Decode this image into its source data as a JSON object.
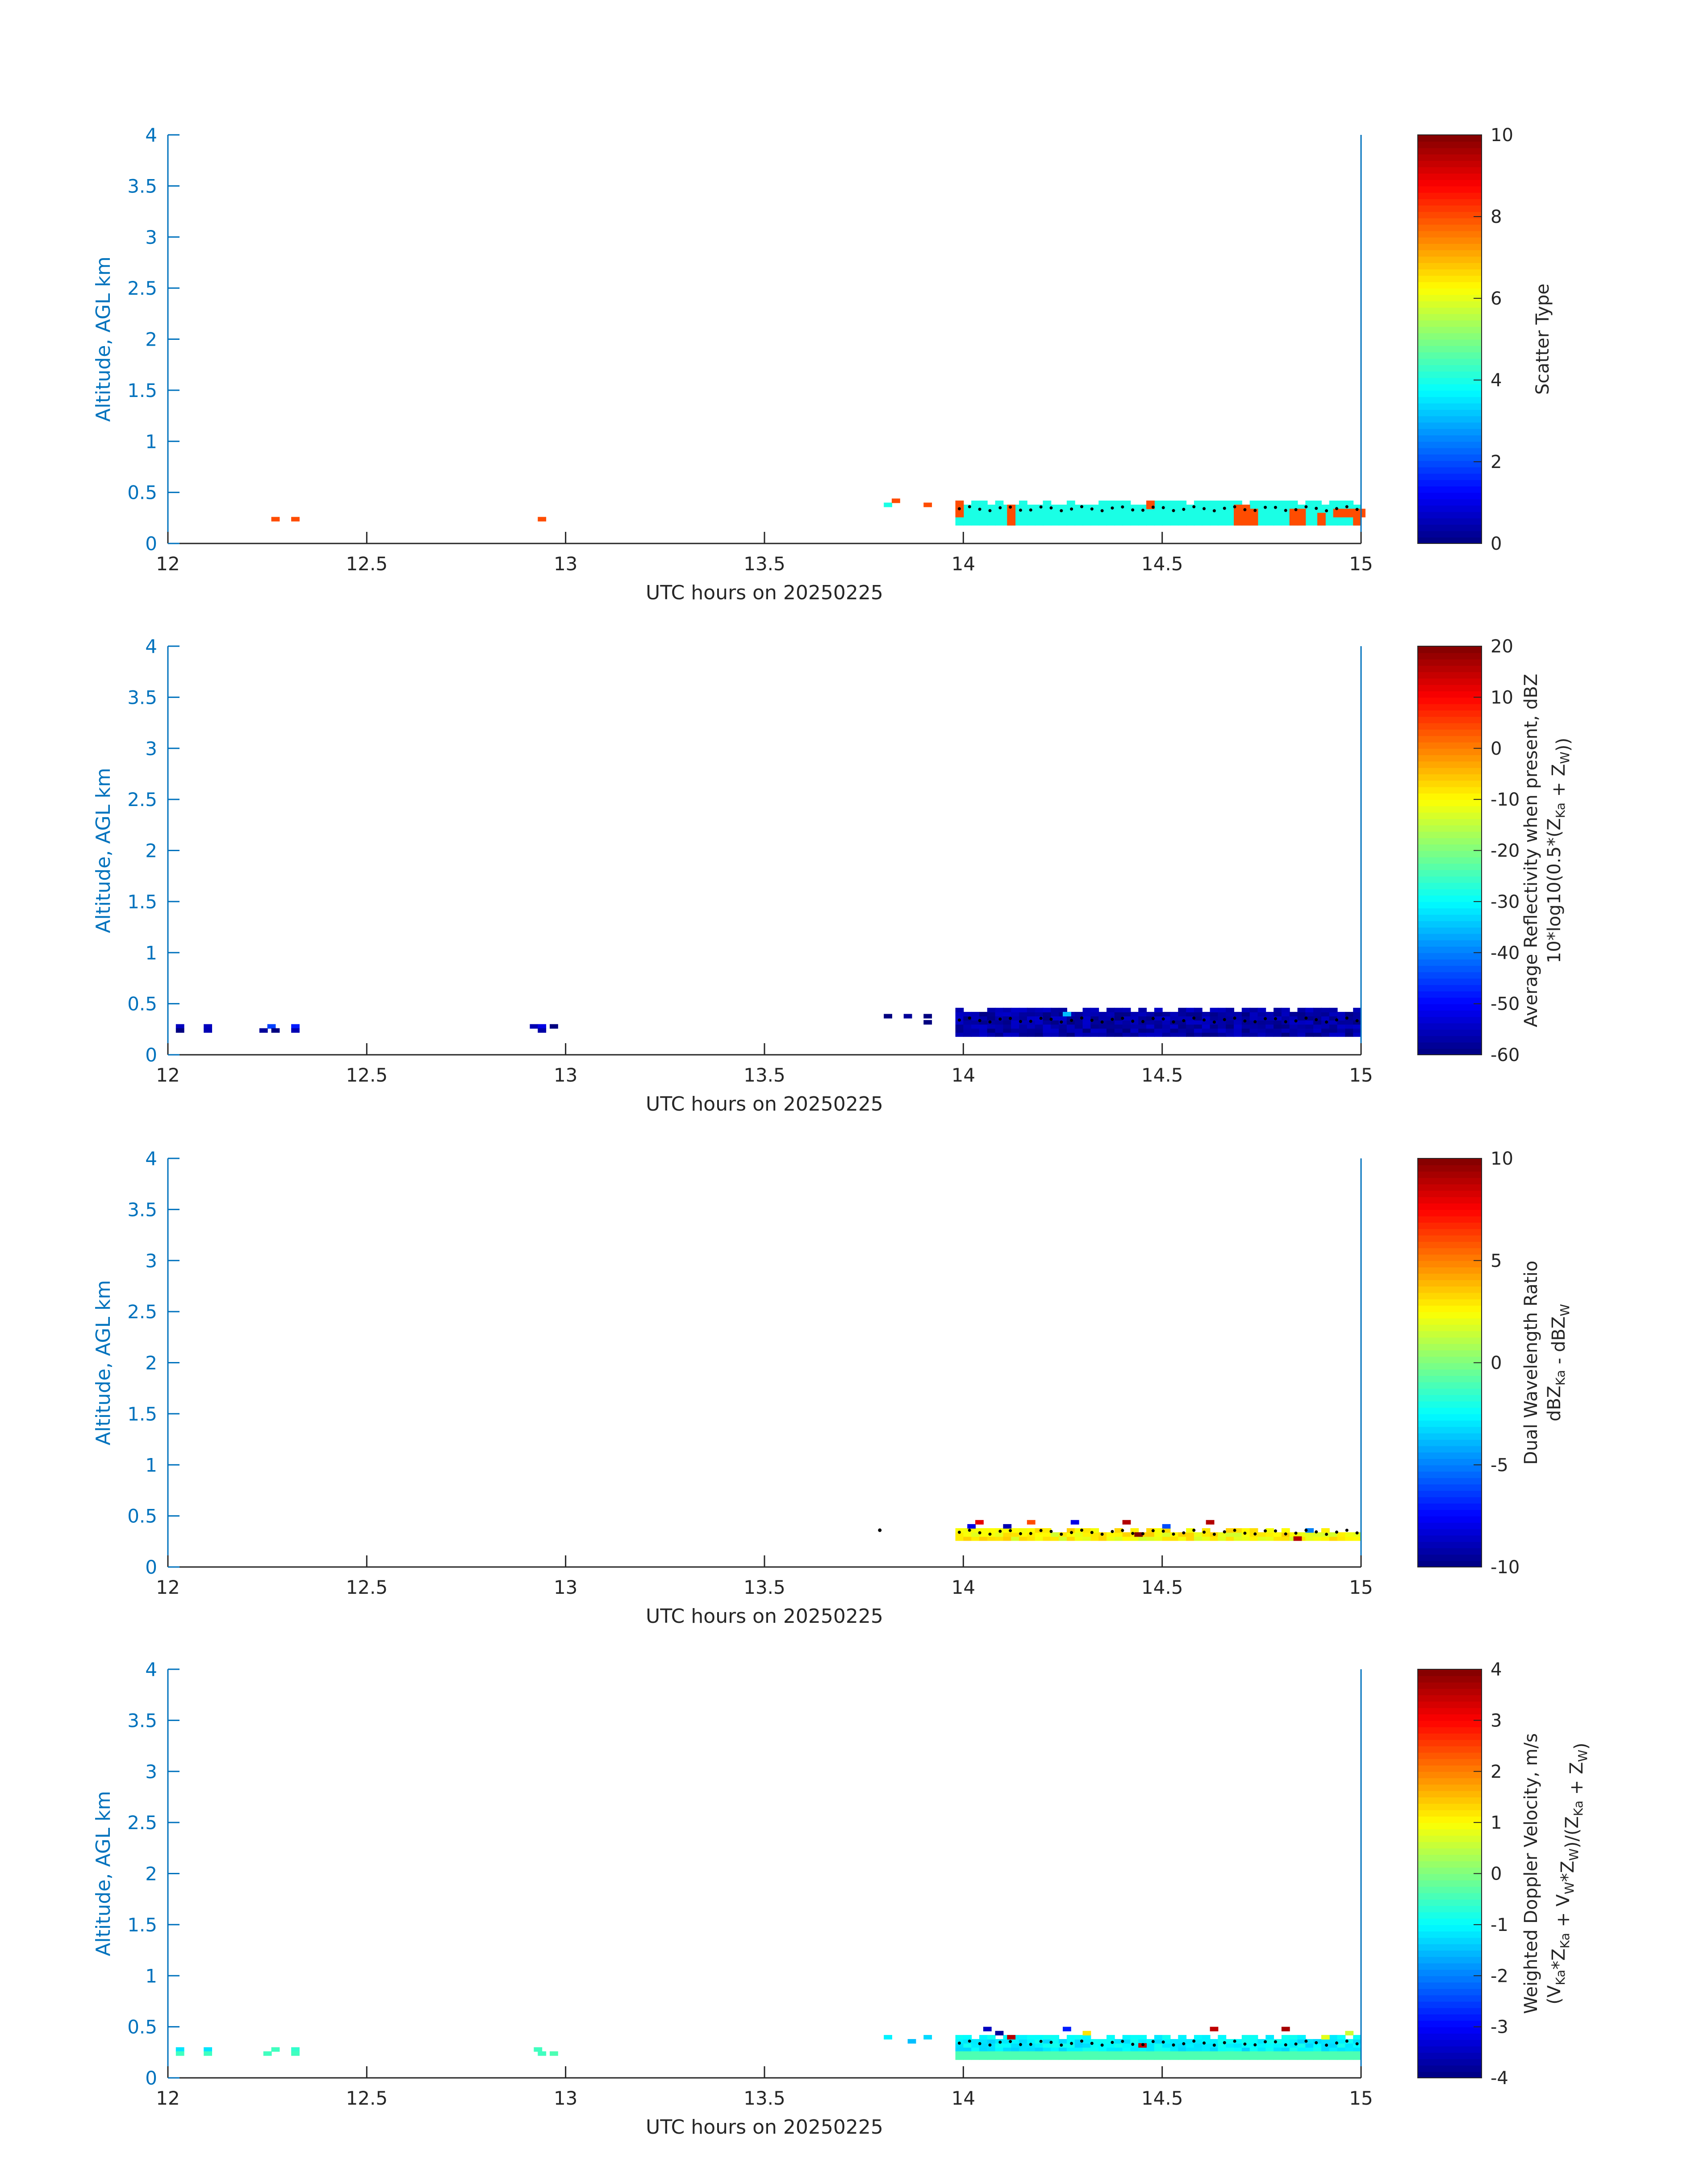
{
  "figure": {
    "background": "#ffffff",
    "axis_color": "#0072bd",
    "text_color": "#262626",
    "colormap": "jet"
  },
  "chart_data": [
    {
      "type": "heatmap",
      "title": "",
      "xlabel": "UTC hours on 20250225",
      "ylabel": "Altitude, AGL km",
      "xlim": [
        12,
        15
      ],
      "ylim": [
        0,
        4
      ],
      "x_ticks": [
        12,
        12.5,
        13,
        13.5,
        14,
        14.5,
        15
      ],
      "x_tick_labels": [
        "12",
        "12.5",
        "13",
        "13.5",
        "14",
        "14.5",
        "15"
      ],
      "y_ticks": [
        0,
        0.5,
        1,
        1.5,
        2,
        2.5,
        3,
        3.5,
        4
      ],
      "y_tick_labels": [
        "0",
        "0.5",
        "1",
        "1.5",
        "2",
        "2.5",
        "3",
        "3.5",
        "4"
      ],
      "colorbar": {
        "label": [
          "Scatter Type"
        ],
        "clim": [
          0,
          10
        ],
        "ticks": [
          0,
          2,
          4,
          6,
          8,
          10
        ],
        "tick_labels": [
          "0",
          "2",
          "4",
          "6",
          "8",
          "10"
        ]
      },
      "cells": [
        {
          "x": 12.26,
          "y": 0.22,
          "value": 8
        },
        {
          "x": 12.31,
          "y": 0.22,
          "value": 8
        },
        {
          "x": 12.93,
          "y": 0.22,
          "value": 8
        },
        {
          "x": 13.8,
          "y": 0.36,
          "value": 4
        },
        {
          "x": 13.82,
          "y": 0.4,
          "value": 8
        },
        {
          "x": 13.9,
          "y": 0.36,
          "value": 8
        }
      ],
      "blocks": [
        {
          "x_start": 13.98,
          "x_end": 15.0,
          "y_bottom": 0.18,
          "y_top": 0.42,
          "value": 4
        }
      ],
      "blocks_secondary": [
        {
          "x_start": 13.98,
          "x_end": 14.0,
          "y_bottom": 0.26,
          "y_top": 0.42,
          "value": 8
        },
        {
          "x_start": 14.11,
          "x_end": 14.13,
          "y_bottom": 0.18,
          "y_top": 0.38,
          "value": 8
        },
        {
          "x_start": 14.46,
          "x_end": 14.48,
          "y_bottom": 0.34,
          "y_top": 0.42,
          "value": 8
        },
        {
          "x_start": 14.68,
          "x_end": 14.71,
          "y_bottom": 0.18,
          "y_top": 0.38,
          "value": 8
        },
        {
          "x_start": 14.72,
          "x_end": 14.74,
          "y_bottom": 0.18,
          "y_top": 0.34,
          "value": 8
        },
        {
          "x_start": 14.82,
          "x_end": 14.86,
          "y_bottom": 0.18,
          "y_top": 0.34,
          "value": 8
        },
        {
          "x_start": 14.89,
          "x_end": 14.91,
          "y_bottom": 0.18,
          "y_top": 0.3,
          "value": 8
        },
        {
          "x_start": 14.93,
          "x_end": 15.0,
          "y_bottom": 0.26,
          "y_top": 0.34,
          "value": 8
        },
        {
          "x_start": 14.98,
          "x_end": 15.0,
          "y_bottom": 0.18,
          "y_top": 0.34,
          "value": 8
        }
      ],
      "dots": {
        "x_start": 13.99,
        "x_end": 14.99,
        "y": 0.34,
        "count": 40
      },
      "right_edge_line": true
    },
    {
      "type": "heatmap",
      "title": "",
      "xlabel": "UTC hours on 20250225",
      "ylabel": "Altitude, AGL km",
      "xlim": [
        12,
        15
      ],
      "ylim": [
        0,
        4
      ],
      "x_ticks": [
        12,
        12.5,
        13,
        13.5,
        14,
        14.5,
        15
      ],
      "x_tick_labels": [
        "12",
        "12.5",
        "13",
        "13.5",
        "14",
        "14.5",
        "15"
      ],
      "y_ticks": [
        0,
        0.5,
        1,
        1.5,
        2,
        2.5,
        3,
        3.5,
        4
      ],
      "y_tick_labels": [
        "0",
        "0.5",
        "1",
        "1.5",
        "2",
        "2.5",
        "3",
        "3.5",
        "4"
      ],
      "colorbar": {
        "label": [
          "Average Reflectivity when present, dBZ",
          "10*log10(0.5*(Z<sub>Ka</sub> + Z<sub>W</sub>))"
        ],
        "clim": [
          -60,
          20
        ],
        "ticks": [
          -60,
          -50,
          -40,
          -30,
          -20,
          -10,
          0,
          10,
          20
        ],
        "tick_labels": [
          "-60",
          "-50",
          "-40",
          "-30",
          "-20",
          "-10",
          "0",
          "10",
          "20"
        ]
      },
      "cells": [
        {
          "x": 12.02,
          "y": 0.26,
          "value": -55
        },
        {
          "x": 12.02,
          "y": 0.22,
          "value": -60
        },
        {
          "x": 12.09,
          "y": 0.26,
          "value": -55
        },
        {
          "x": 12.09,
          "y": 0.22,
          "value": -56
        },
        {
          "x": 12.23,
          "y": 0.22,
          "value": -58
        },
        {
          "x": 12.25,
          "y": 0.26,
          "value": -45
        },
        {
          "x": 12.26,
          "y": 0.22,
          "value": -60
        },
        {
          "x": 12.31,
          "y": 0.26,
          "value": -48
        },
        {
          "x": 12.31,
          "y": 0.22,
          "value": -56
        },
        {
          "x": 12.91,
          "y": 0.26,
          "value": -56
        },
        {
          "x": 12.93,
          "y": 0.26,
          "value": -52
        },
        {
          "x": 12.93,
          "y": 0.22,
          "value": -57
        },
        {
          "x": 12.96,
          "y": 0.26,
          "value": -60
        },
        {
          "x": 13.8,
          "y": 0.36,
          "value": -60
        },
        {
          "x": 13.85,
          "y": 0.36,
          "value": -58
        },
        {
          "x": 13.9,
          "y": 0.36,
          "value": -60
        },
        {
          "x": 13.9,
          "y": 0.3,
          "value": -60
        },
        {
          "x": 14.25,
          "y": 0.38,
          "value": -35
        }
      ],
      "blocks": [
        {
          "x_start": 13.98,
          "x_end": 15.0,
          "y_bottom": 0.18,
          "y_top": 0.46,
          "value": -57
        }
      ],
      "dots": {
        "x_start": 13.99,
        "x_end": 14.99,
        "y": 0.34,
        "count": 40
      },
      "right_edge_line": true
    },
    {
      "type": "heatmap",
      "title": "",
      "xlabel": "UTC hours on 20250225",
      "ylabel": "Altitude, AGL km",
      "xlim": [
        12,
        15
      ],
      "ylim": [
        0,
        4
      ],
      "x_ticks": [
        12,
        12.5,
        13,
        13.5,
        14,
        14.5,
        15
      ],
      "x_tick_labels": [
        "12",
        "12.5",
        "13",
        "13.5",
        "14",
        "14.5",
        "15"
      ],
      "y_ticks": [
        0,
        0.5,
        1,
        1.5,
        2,
        2.5,
        3,
        3.5,
        4
      ],
      "y_tick_labels": [
        "0",
        "0.5",
        "1",
        "1.5",
        "2",
        "2.5",
        "3",
        "3.5",
        "4"
      ],
      "colorbar": {
        "label": [
          "Dual Wavelength Ratio",
          "dBZ<sub>Ka</sub> - dBZ<sub>W</sub>"
        ],
        "clim": [
          -10,
          10
        ],
        "ticks": [
          -10,
          -5,
          0,
          5,
          10
        ],
        "tick_labels": [
          "-10",
          "-5",
          "0",
          "5",
          "10"
        ]
      },
      "cells": [
        {
          "x": 14.01,
          "y": 0.38,
          "value": -8
        },
        {
          "x": 14.03,
          "y": 0.42,
          "value": 8
        },
        {
          "x": 14.1,
          "y": 0.38,
          "value": -9
        },
        {
          "x": 14.16,
          "y": 0.42,
          "value": 6
        },
        {
          "x": 14.27,
          "y": 0.42,
          "value": -8
        },
        {
          "x": 14.4,
          "y": 0.42,
          "value": 9
        },
        {
          "x": 14.43,
          "y": 0.3,
          "value": 10
        },
        {
          "x": 14.5,
          "y": 0.38,
          "value": -6
        },
        {
          "x": 14.61,
          "y": 0.42,
          "value": 9
        },
        {
          "x": 14.83,
          "y": 0.26,
          "value": 9
        },
        {
          "x": 14.86,
          "y": 0.34,
          "value": -5
        }
      ],
      "blocks": [
        {
          "x_start": 13.98,
          "x_end": 15.0,
          "y_bottom": 0.26,
          "y_top": 0.38,
          "value": 2.5
        }
      ],
      "dots": {
        "x_start": 13.99,
        "x_end": 14.99,
        "y": 0.34,
        "count": 40
      },
      "extra_points": [
        {
          "x": 13.79,
          "y": 0.36
        }
      ],
      "right_edge_line": true
    },
    {
      "type": "heatmap",
      "title": "",
      "xlabel": "UTC hours on 20250225",
      "ylabel": "Altitude, AGL km",
      "xlim": [
        12,
        15
      ],
      "ylim": [
        0,
        4
      ],
      "x_ticks": [
        12,
        12.5,
        13,
        13.5,
        14,
        14.5,
        15
      ],
      "x_tick_labels": [
        "12",
        "12.5",
        "13",
        "13.5",
        "14",
        "14.5",
        "15"
      ],
      "y_ticks": [
        0,
        0.5,
        1,
        1.5,
        2,
        2.5,
        3,
        3.5,
        4
      ],
      "y_tick_labels": [
        "0",
        "0.5",
        "1",
        "1.5",
        "2",
        "2.5",
        "3",
        "3.5",
        "4"
      ],
      "colorbar": {
        "label": [
          "Weighted Doppler Velocity, m/s",
          "(V<sub>Ka</sub>*Z<sub>Ka</sub> + V<sub>W</sub>*Z<sub>W</sub>)/(Z<sub>Ka</sub> + Z<sub>W</sub>)"
        ],
        "clim": [
          -4,
          4
        ],
        "ticks": [
          -4,
          -3,
          -2,
          -1,
          0,
          1,
          2,
          3,
          4
        ],
        "tick_labels": [
          "-4",
          "-3",
          "-2",
          "-1",
          "0",
          "1",
          "2",
          "3",
          "4"
        ]
      },
      "cells": [
        {
          "x": 12.02,
          "y": 0.26,
          "value": -1.2
        },
        {
          "x": 12.02,
          "y": 0.22,
          "value": -0.5
        },
        {
          "x": 12.09,
          "y": 0.26,
          "value": -1.2
        },
        {
          "x": 12.09,
          "y": 0.22,
          "value": -0.5
        },
        {
          "x": 12.24,
          "y": 0.22,
          "value": -0.5
        },
        {
          "x": 12.26,
          "y": 0.26,
          "value": -0.5
        },
        {
          "x": 12.31,
          "y": 0.26,
          "value": -0.6
        },
        {
          "x": 12.31,
          "y": 0.22,
          "value": -0.5
        },
        {
          "x": 12.92,
          "y": 0.26,
          "value": -0.5
        },
        {
          "x": 12.93,
          "y": 0.22,
          "value": -0.5
        },
        {
          "x": 12.96,
          "y": 0.22,
          "value": -0.4
        },
        {
          "x": 13.8,
          "y": 0.38,
          "value": -1.1
        },
        {
          "x": 13.86,
          "y": 0.34,
          "value": -1.5
        },
        {
          "x": 13.9,
          "y": 0.38,
          "value": -1.3
        },
        {
          "x": 14.05,
          "y": 0.46,
          "value": -3.5
        },
        {
          "x": 14.08,
          "y": 0.42,
          "value": -3.8
        },
        {
          "x": 14.11,
          "y": 0.38,
          "value": 3.6
        },
        {
          "x": 14.25,
          "y": 0.46,
          "value": -2.8
        },
        {
          "x": 14.3,
          "y": 0.42,
          "value": 1.2
        },
        {
          "x": 14.44,
          "y": 0.3,
          "value": 3.5
        },
        {
          "x": 14.62,
          "y": 0.46,
          "value": 3.5
        },
        {
          "x": 14.8,
          "y": 0.46,
          "value": 3.7
        },
        {
          "x": 14.9,
          "y": 0.38,
          "value": 0.8
        },
        {
          "x": 14.96,
          "y": 0.42,
          "value": 0.6
        }
      ],
      "blocks": [
        {
          "x_start": 13.98,
          "x_end": 15.0,
          "y_bottom": 0.26,
          "y_top": 0.42,
          "value": -1.1
        }
      ],
      "blocks_secondary": [
        {
          "x_start": 13.98,
          "x_end": 15.0,
          "y_bottom": 0.18,
          "y_top": 0.26,
          "value": -0.4
        }
      ],
      "dots": {
        "x_start": 13.99,
        "x_end": 14.99,
        "y": 0.34,
        "count": 40
      },
      "right_edge_line": true
    }
  ]
}
